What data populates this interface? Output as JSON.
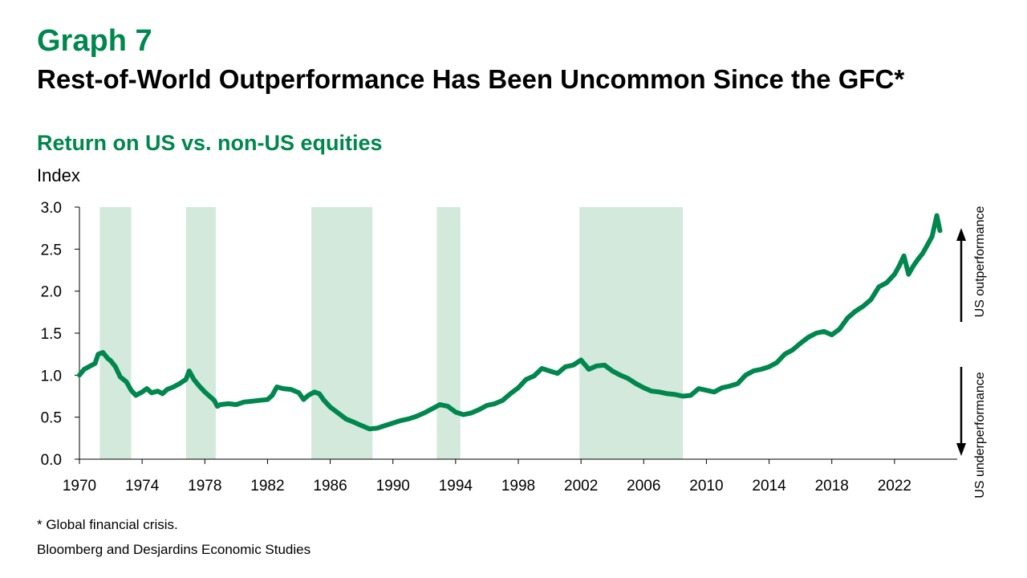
{
  "header": {
    "graph_number": "Graph 7",
    "title": "Rest-of-World Outperformance Has Been Uncommon Since the GFC*"
  },
  "footer": {
    "footnote": "* Global financial crisis.",
    "source": "Bloomberg and Desjardins Economic Studies"
  },
  "colors": {
    "accent": "#00874E",
    "line": "#00874E",
    "shade": "#D2E9DC",
    "text": "#000000"
  },
  "chart_data": {
    "type": "line",
    "title": "Return on US vs. non-US equities",
    "ylabel": "Index",
    "xlim": [
      1970,
      2026
    ],
    "ylim": [
      0,
      3.0
    ],
    "yticks": [
      0.0,
      0.5,
      1.0,
      1.5,
      2.0,
      2.5,
      3.0
    ],
    "ytick_labels": [
      "0.0",
      "0.5",
      "1.0",
      "1.5",
      "2.0",
      "2.5",
      "3.0"
    ],
    "xticks": [
      1970,
      1974,
      1978,
      1982,
      1986,
      1990,
      1994,
      1998,
      2002,
      2006,
      2010,
      2014,
      2018,
      2022
    ],
    "xtick_labels": [
      "1970",
      "1974",
      "1978",
      "1982",
      "1986",
      "1990",
      "1994",
      "1998",
      "2002",
      "2006",
      "2010",
      "2014",
      "2018",
      "2022"
    ],
    "grid": false,
    "shaded_periods": [
      [
        1971.3,
        1973.3
      ],
      [
        1976.8,
        1978.7
      ],
      [
        1984.8,
        1988.7
      ],
      [
        1992.8,
        1994.3
      ],
      [
        2001.9,
        2008.5
      ]
    ],
    "annotations": [
      {
        "text": "US outperformance",
        "direction": "up"
      },
      {
        "text": "US underperformance",
        "direction": "down"
      }
    ],
    "series": [
      {
        "x": [
          1970.0,
          1970.3,
          1970.6,
          1971.0,
          1971.2,
          1971.5,
          1971.8,
          1972.0,
          1972.3,
          1972.6,
          1973.0,
          1973.3,
          1973.6,
          1974.0,
          1974.3,
          1974.6,
          1975.0,
          1975.3,
          1975.6,
          1976.0,
          1976.4,
          1976.8,
          1977.0,
          1977.3,
          1977.6,
          1978.0,
          1978.3,
          1978.6,
          1978.8,
          1979.0,
          1979.5,
          1980.0,
          1980.5,
          1981.0,
          1981.5,
          1982.0,
          1982.3,
          1982.6,
          1983.0,
          1983.5,
          1984.0,
          1984.3,
          1984.6,
          1985.0,
          1985.3,
          1985.6,
          1986.0,
          1986.5,
          1987.0,
          1987.5,
          1988.0,
          1988.5,
          1989.0,
          1989.5,
          1990.0,
          1990.5,
          1991.0,
          1991.5,
          1992.0,
          1992.5,
          1993.0,
          1993.5,
          1994.0,
          1994.5,
          1995.0,
          1995.5,
          1996.0,
          1996.5,
          1997.0,
          1997.5,
          1998.0,
          1998.5,
          1999.0,
          1999.5,
          2000.0,
          2000.5,
          2001.0,
          2001.5,
          2002.0,
          2002.5,
          2003.0,
          2003.5,
          2004.0,
          2004.5,
          2005.0,
          2005.5,
          2006.0,
          2006.5,
          2007.0,
          2007.5,
          2008.0,
          2008.5,
          2009.0,
          2009.5,
          2010.0,
          2010.5,
          2011.0,
          2011.5,
          2012.0,
          2012.5,
          2013.0,
          2013.5,
          2014.0,
          2014.5,
          2015.0,
          2015.5,
          2016.0,
          2016.5,
          2017.0,
          2017.5,
          2018.0,
          2018.5,
          2019.0,
          2019.5,
          2020.0,
          2020.5,
          2021.0,
          2021.5,
          2022.0,
          2022.3,
          2022.6,
          2022.9,
          2023.2,
          2023.5,
          2023.8,
          2024.1,
          2024.4,
          2024.7,
          2024.9
        ],
        "values": [
          1.0,
          1.07,
          1.1,
          1.14,
          1.25,
          1.27,
          1.2,
          1.17,
          1.1,
          0.98,
          0.92,
          0.82,
          0.76,
          0.8,
          0.84,
          0.79,
          0.81,
          0.78,
          0.83,
          0.86,
          0.9,
          0.95,
          1.05,
          0.95,
          0.88,
          0.8,
          0.75,
          0.7,
          0.63,
          0.65,
          0.66,
          0.65,
          0.68,
          0.69,
          0.7,
          0.71,
          0.76,
          0.86,
          0.84,
          0.83,
          0.79,
          0.71,
          0.76,
          0.8,
          0.78,
          0.7,
          0.62,
          0.55,
          0.48,
          0.44,
          0.4,
          0.36,
          0.37,
          0.4,
          0.43,
          0.46,
          0.48,
          0.51,
          0.55,
          0.6,
          0.65,
          0.63,
          0.56,
          0.53,
          0.55,
          0.59,
          0.64,
          0.66,
          0.7,
          0.78,
          0.85,
          0.95,
          0.99,
          1.08,
          1.05,
          1.02,
          1.1,
          1.12,
          1.18,
          1.07,
          1.11,
          1.12,
          1.05,
          1.0,
          0.96,
          0.9,
          0.85,
          0.81,
          0.8,
          0.78,
          0.77,
          0.75,
          0.76,
          0.84,
          0.82,
          0.8,
          0.85,
          0.87,
          0.9,
          1.0,
          1.05,
          1.07,
          1.1,
          1.15,
          1.25,
          1.3,
          1.38,
          1.45,
          1.5,
          1.52,
          1.48,
          1.55,
          1.68,
          1.76,
          1.82,
          1.9,
          2.05,
          2.1,
          2.2,
          2.3,
          2.42,
          2.2,
          2.3,
          2.38,
          2.45,
          2.55,
          2.65,
          2.9,
          2.72
        ]
      }
    ]
  }
}
